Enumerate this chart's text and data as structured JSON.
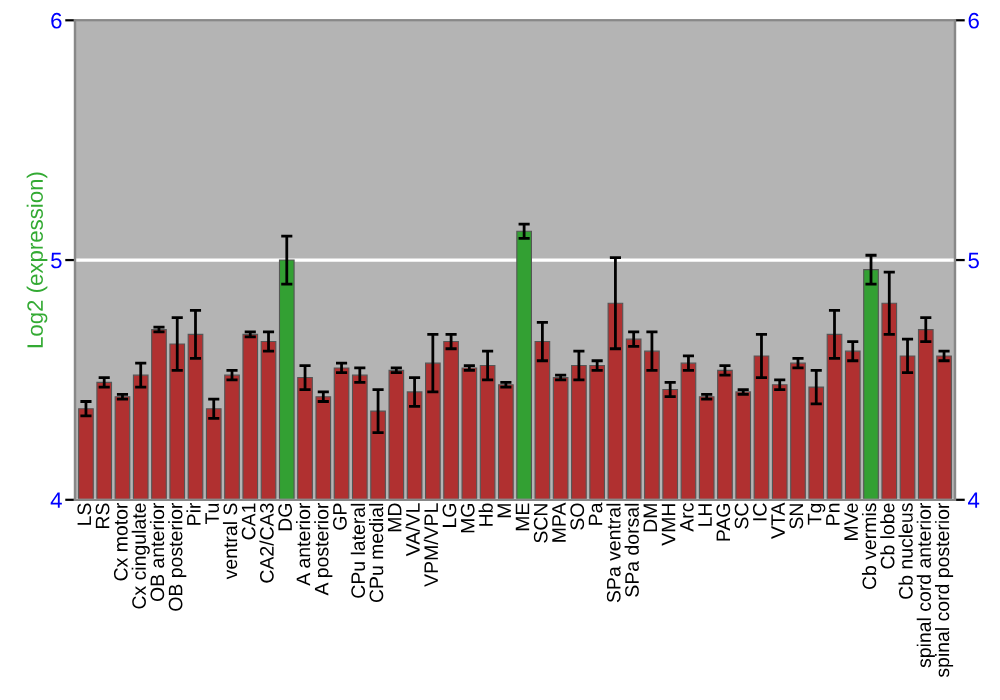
{
  "chart_data": {
    "type": "bar",
    "ylabel": "Log2 (expression)",
    "categories": [
      "LS",
      "RS",
      "Cx motor",
      "Cx cingulate",
      "OB anterior",
      "OB posterior",
      "Pir",
      "Tu",
      "ventral S",
      "CA1",
      "CA2/CA3",
      "DG",
      "A anterior",
      "A posterior",
      "GP",
      "CPu lateral",
      "CPu medial",
      "MD",
      "VA/VL",
      "VPM/VPL",
      "LG",
      "MG",
      "Hb",
      "M",
      "ME",
      "SCN",
      "MPA",
      "SO",
      "Pa",
      "SPa ventral",
      "SPa dorsal",
      "DM",
      "VMH",
      "Arc",
      "LH",
      "PAG",
      "SC",
      "IC",
      "VTA",
      "SN",
      "Tg",
      "Pn",
      "MVe",
      "Cb vermis",
      "Cb lobe",
      "Cb nucleus",
      "spinal cord anterior",
      "spinal cord posterior"
    ],
    "values": [
      4.38,
      4.49,
      4.43,
      4.52,
      4.71,
      4.65,
      4.69,
      4.38,
      4.52,
      4.69,
      4.66,
      5.0,
      4.51,
      4.43,
      4.55,
      4.52,
      4.37,
      4.54,
      4.45,
      4.57,
      4.66,
      4.55,
      4.56,
      4.48,
      5.12,
      4.66,
      4.51,
      4.56,
      4.56,
      4.82,
      4.67,
      4.62,
      4.46,
      4.57,
      4.43,
      4.54,
      4.45,
      4.6,
      4.48,
      4.57,
      4.47,
      4.69,
      4.62,
      4.96,
      4.82,
      4.6,
      4.71,
      4.6
    ],
    "errors": [
      0.03,
      0.02,
      0.01,
      0.05,
      0.01,
      0.11,
      0.1,
      0.04,
      0.02,
      0.01,
      0.04,
      0.1,
      0.05,
      0.02,
      0.02,
      0.03,
      0.09,
      0.01,
      0.06,
      0.12,
      0.03,
      0.01,
      0.06,
      0.01,
      0.03,
      0.08,
      0.01,
      0.06,
      0.02,
      0.19,
      0.03,
      0.08,
      0.03,
      0.03,
      0.01,
      0.02,
      0.01,
      0.09,
      0.02,
      0.02,
      0.07,
      0.1,
      0.04,
      0.06,
      0.13,
      0.07,
      0.05,
      0.02
    ],
    "colors": [
      "#b03030",
      "#b03030",
      "#b03030",
      "#b03030",
      "#b03030",
      "#b03030",
      "#b03030",
      "#b03030",
      "#b03030",
      "#b03030",
      "#b03030",
      "#33a033",
      "#b03030",
      "#b03030",
      "#b03030",
      "#b03030",
      "#b03030",
      "#b03030",
      "#b03030",
      "#b03030",
      "#b03030",
      "#b03030",
      "#b03030",
      "#b03030",
      "#33a033",
      "#b03030",
      "#b03030",
      "#b03030",
      "#b03030",
      "#b03030",
      "#b03030",
      "#b03030",
      "#b03030",
      "#b03030",
      "#b03030",
      "#b03030",
      "#b03030",
      "#b03030",
      "#b03030",
      "#b03030",
      "#b03030",
      "#b03030",
      "#b03030",
      "#33a033",
      "#b03030",
      "#b03030",
      "#b03030",
      "#b03030"
    ],
    "ylim": [
      4,
      6
    ],
    "yticks": [
      4,
      5,
      6
    ],
    "y2lim": [
      4,
      6
    ],
    "y2ticks": [
      4,
      5,
      6
    ],
    "grid": "y",
    "legend": false
  }
}
